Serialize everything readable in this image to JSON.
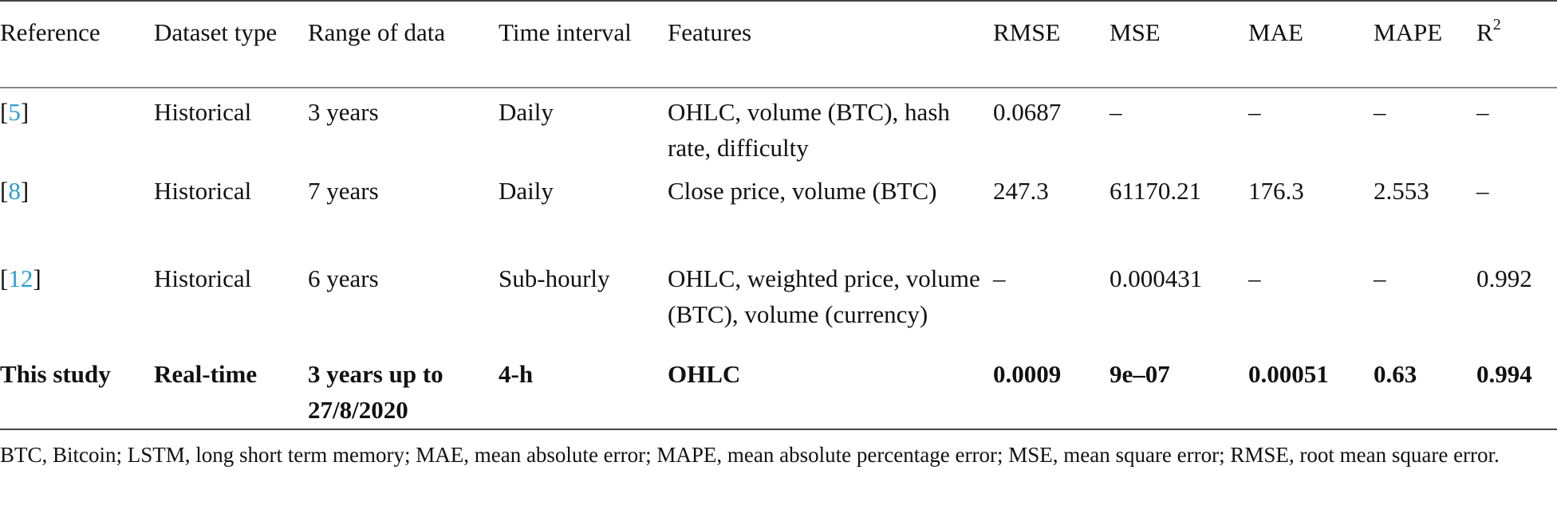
{
  "table": {
    "headers": [
      "Reference",
      "Dataset type",
      "Range of data",
      "Time interval",
      "Features",
      "RMSE",
      "MSE",
      "MAE",
      "MAPE",
      "R"
    ],
    "r2_superscript": "2",
    "rows": [
      {
        "ref": "5",
        "cells": [
          "Historical",
          "3 years",
          "Daily",
          "OHLC, volume (BTC), hash rate, difficulty",
          "0.0687",
          "–",
          "–",
          "–",
          "–"
        ]
      },
      {
        "ref": "8",
        "cells": [
          "Historical",
          "7 years",
          "Daily",
          "Close price, volume (BTC)",
          "247.3",
          "61170.21",
          "176.3",
          "2.553",
          "–"
        ]
      },
      {
        "ref": "12",
        "cells": [
          "Historical",
          "6 years",
          "Sub-hourly",
          "OHLC, weighted price, volume (BTC), volume (currency)",
          "–",
          "0.000431",
          "–",
          "–",
          "0.992"
        ]
      }
    ],
    "highlight_row": {
      "label": "This study",
      "cells": [
        "Real-time",
        "3 years up to 27/8/2020",
        "4-h",
        "OHLC",
        "0.0009",
        "9e–07",
        "0.00051",
        "0.63",
        "0.994"
      ]
    }
  },
  "footnote": "BTC, Bitcoin; LSTM, long short term memory; MAE, mean absolute error; MAPE, mean absolute percentage error; MSE, mean square error; RMSE, root mean square error.",
  "colors": {
    "reference_link": "#2a9fd6",
    "rule": "#444444"
  }
}
